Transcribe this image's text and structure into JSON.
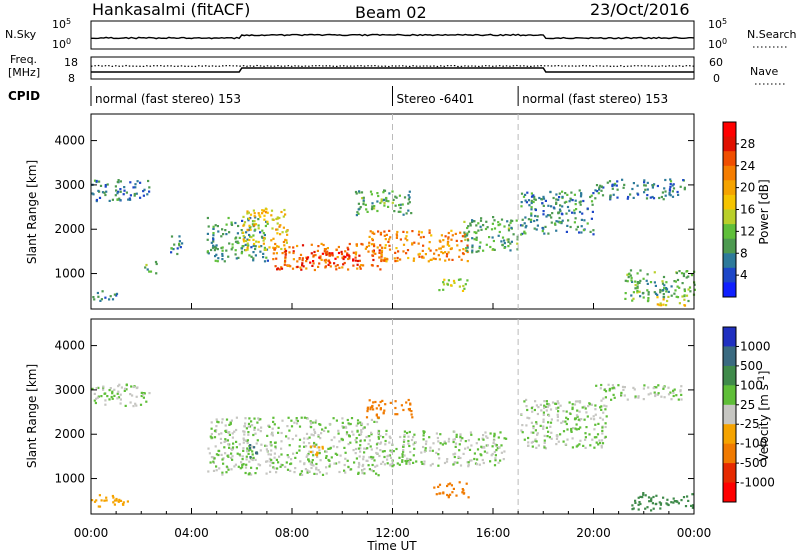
{
  "header": {
    "left": "Hankasalmi (fitACF)",
    "center": "Beam 02",
    "right": "23/Oct/2016"
  },
  "strip_labels": {
    "nsky": "N.Sky",
    "nsearch": "N.Search",
    "freq_line1": "Freq.",
    "freq_line2": "[MHz]",
    "nave": "Nave",
    "cpid": "CPID",
    "exp_10_5_left": "10^5",
    "exp_10_0_left": "10^0",
    "exp_10_5_right": "10^5",
    "exp_10_0_right": "10^0",
    "freq_top": "18",
    "freq_bottom": "8",
    "nave_top": "60",
    "nave_bottom": "0"
  },
  "cpid_segments": [
    {
      "label": "normal (fast stereo) 153",
      "start_hour": 0,
      "end_hour": 12
    },
    {
      "label": "Stereo -6401",
      "start_hour": 12,
      "end_hour": 17
    },
    {
      "label": "normal (fast stereo) 153",
      "start_hour": 17,
      "end_hour": 24
    }
  ],
  "axes": {
    "ylabel": "Slant Range [km]",
    "xlabel": "Time UT",
    "x_ticks": [
      "00:00",
      "04:00",
      "08:00",
      "12:00",
      "16:00",
      "20:00",
      "00:00"
    ],
    "y_ticks": [
      "1000",
      "2000",
      "3000",
      "4000"
    ]
  },
  "colorbars": {
    "power": {
      "label": "Power [dB]",
      "ticks": [
        "4",
        "8",
        "12",
        "16",
        "20",
        "24",
        "28"
      ],
      "colors": [
        "#1020ff",
        "#1d47c8",
        "#2d7a9a",
        "#4d9a50",
        "#5fbf3a",
        "#b9cf2a",
        "#f5c400",
        "#f5a300",
        "#f57d00",
        "#f04e00",
        "#e01000",
        "#ff0000"
      ]
    },
    "velocity": {
      "label": "Velocity [m s^-1]",
      "ticks": [
        "1000",
        "500",
        "100",
        "25",
        "-25",
        "-100",
        "-500",
        "-1000"
      ],
      "colors": [
        "#2030c0",
        "#3a6a80",
        "#3f8a4a",
        "#5fbe38",
        "#c6c6c2",
        "#f5a300",
        "#f07a00",
        "#e62a00",
        "#ff0000"
      ]
    }
  },
  "chart_data": [
    {
      "type": "heatmap",
      "title": "Power",
      "xlabel": "Time UT",
      "ylabel": "Slant Range [km]",
      "xlim": [
        0,
        24
      ],
      "ylim": [
        200,
        4600
      ],
      "colorbar_label": "Power [dB]",
      "colorbar_range": [
        0,
        32
      ],
      "regions": [
        {
          "t0": 0.0,
          "t1": 2.3,
          "r0": 2650,
          "r1": 3150,
          "value": 7
        },
        {
          "t0": 0.0,
          "t1": 1.0,
          "r0": 400,
          "r1": 650,
          "value": 9
        },
        {
          "t0": 2.1,
          "t1": 2.6,
          "r0": 1000,
          "r1": 1300,
          "value": 11
        },
        {
          "t0": 3.1,
          "t1": 3.6,
          "r0": 1400,
          "r1": 1900,
          "value": 8
        },
        {
          "t0": 4.6,
          "t1": 7.0,
          "r0": 1300,
          "r1": 2300,
          "value": 9
        },
        {
          "t0": 6.0,
          "t1": 7.8,
          "r0": 1550,
          "r1": 2500,
          "value": 18
        },
        {
          "t0": 7.2,
          "t1": 11.5,
          "r0": 1100,
          "r1": 1700,
          "value": 24
        },
        {
          "t0": 8.5,
          "t1": 10.5,
          "r0": 1250,
          "r1": 1550,
          "value": 28
        },
        {
          "t0": 11.0,
          "t1": 15.0,
          "r0": 1300,
          "r1": 2000,
          "value": 22
        },
        {
          "t0": 10.5,
          "t1": 12.7,
          "r0": 2300,
          "r1": 2900,
          "value": 10
        },
        {
          "t0": 13.8,
          "t1": 15.0,
          "r0": 600,
          "r1": 900,
          "value": 14
        },
        {
          "t0": 14.8,
          "t1": 17.0,
          "r0": 1500,
          "r1": 2300,
          "value": 10
        },
        {
          "t0": 17.0,
          "t1": 20.0,
          "r0": 1900,
          "r1": 2900,
          "value": 8
        },
        {
          "t0": 20.0,
          "t1": 23.6,
          "r0": 2700,
          "r1": 3150,
          "value": 7
        },
        {
          "t0": 21.2,
          "t1": 24.0,
          "r0": 400,
          "r1": 1100,
          "value": 10
        },
        {
          "t0": 22.5,
          "t1": 23.8,
          "r0": 300,
          "r1": 500,
          "value": 18
        }
      ]
    },
    {
      "type": "heatmap",
      "title": "Velocity",
      "xlabel": "Time UT",
      "ylabel": "Slant Range [km]",
      "xlim": [
        0,
        24
      ],
      "ylim": [
        200,
        4600
      ],
      "colorbar_label": "Velocity [m s^-1]",
      "colorbar_range": [
        -1000,
        1000
      ],
      "regions": [
        {
          "t0": 0.0,
          "t1": 2.3,
          "r0": 2650,
          "r1": 3150,
          "value": 0
        },
        {
          "t0": 0.0,
          "t1": 1.6,
          "r0": 380,
          "r1": 650,
          "value": -60
        },
        {
          "t0": 4.6,
          "t1": 11.5,
          "r0": 1100,
          "r1": 2400,
          "value": 0
        },
        {
          "t0": 11.0,
          "t1": 16.5,
          "r0": 1300,
          "r1": 2100,
          "value": 0
        },
        {
          "t0": 6.2,
          "t1": 6.6,
          "r0": 1500,
          "r1": 1800,
          "value": 300
        },
        {
          "t0": 10.8,
          "t1": 12.8,
          "r0": 2400,
          "r1": 2800,
          "value": -300
        },
        {
          "t0": 13.6,
          "t1": 15.0,
          "r0": 600,
          "r1": 950,
          "value": -300
        },
        {
          "t0": 8.5,
          "t1": 9.2,
          "r0": 1500,
          "r1": 1750,
          "value": -60
        },
        {
          "t0": 17.0,
          "t1": 20.5,
          "r0": 1700,
          "r1": 2800,
          "value": 0
        },
        {
          "t0": 20.0,
          "t1": 23.6,
          "r0": 2800,
          "r1": 3150,
          "value": 0
        },
        {
          "t0": 21.5,
          "t1": 24.0,
          "r0": 300,
          "r1": 700,
          "value": 60
        }
      ]
    }
  ]
}
